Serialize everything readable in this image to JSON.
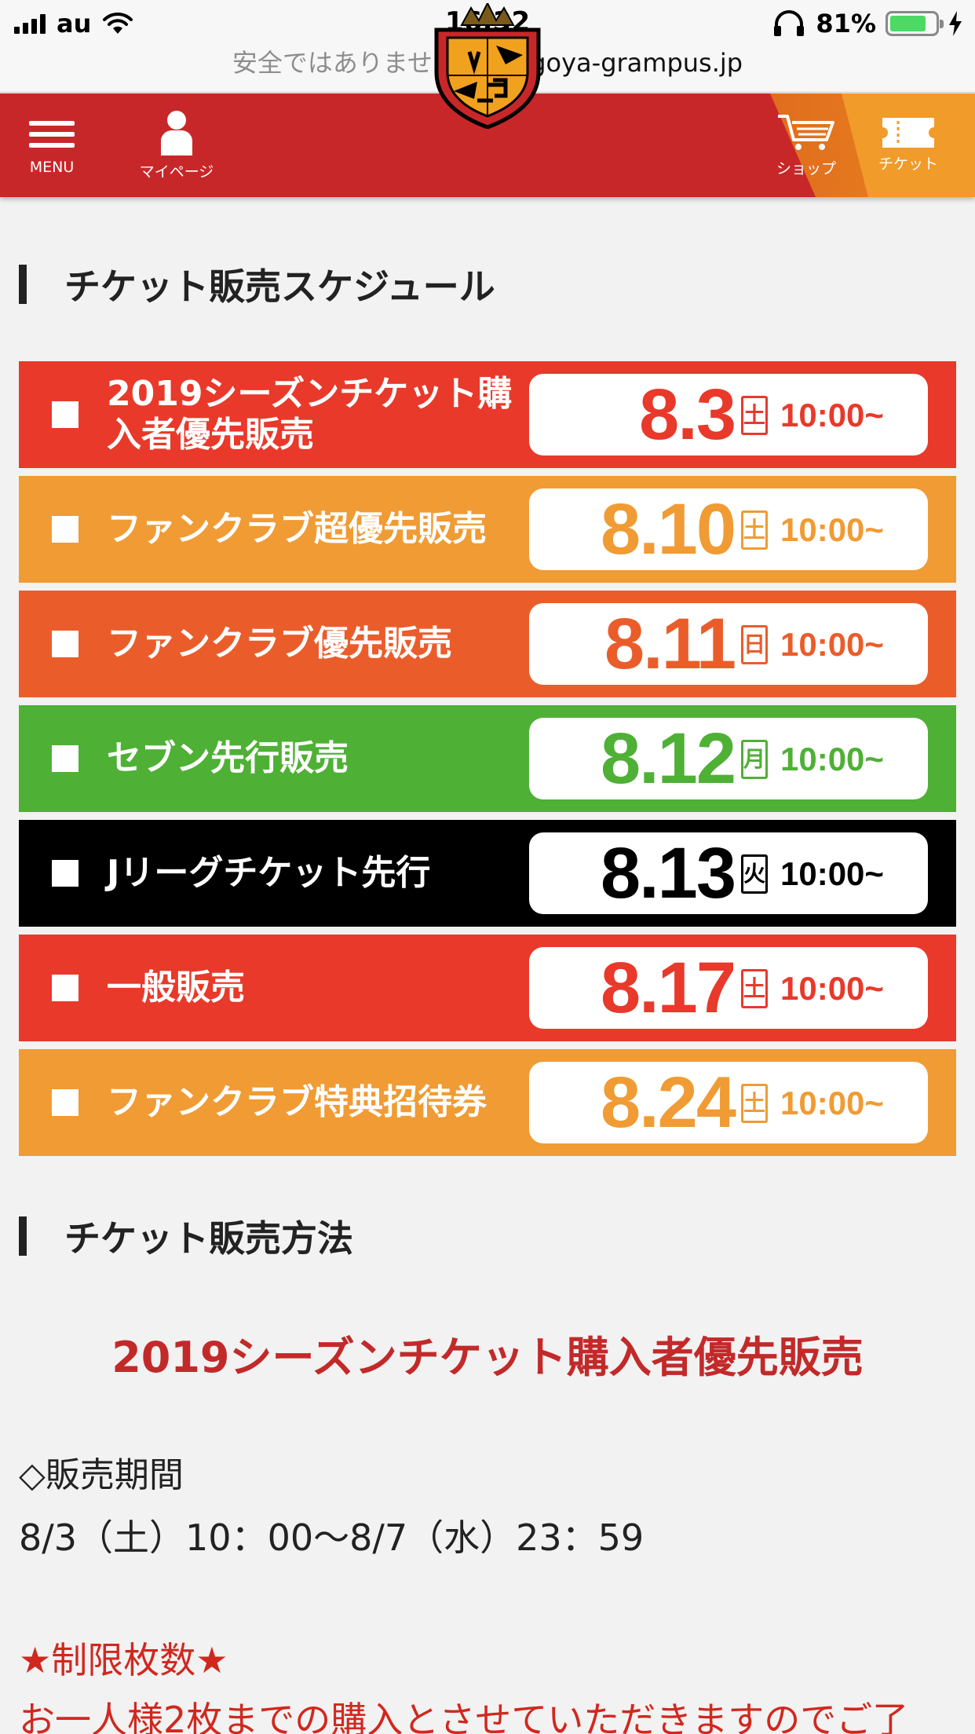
{
  "status_bar": {
    "carrier": "au",
    "time": "16:32",
    "battery_percent": "81%",
    "battery_level": 0.81
  },
  "url_bar": {
    "security_text": "安全ではありません —",
    "domain": "nagoya-grampus.jp"
  },
  "header": {
    "menu_label": "MENU",
    "mypage_label": "マイページ",
    "shop_label": "ショップ",
    "ticket_label": "チケット",
    "colors": {
      "header_red": "#c8272a",
      "shop_orange": "#e27a1f",
      "ticket_orange": "#f09b2a"
    }
  },
  "schedule_section": {
    "heading": "チケット販売スケジュール",
    "items": [
      {
        "label": "2019シーズンチケット購入者優先販売",
        "date": "8.3",
        "dow": "土",
        "time": "10:00~",
        "color": "#e8392b"
      },
      {
        "label": "ファンクラブ超優先販売",
        "date": "8.10",
        "dow": "土",
        "time": "10:00~",
        "color": "#f09b34"
      },
      {
        "label": "ファンクラブ優先販売",
        "date": "8.11",
        "dow": "日",
        "time": "10:00~",
        "color": "#ea5d2b"
      },
      {
        "label": "セブン先行販売",
        "date": "8.12",
        "dow": "月",
        "time": "10:00~",
        "color": "#4fb036"
      },
      {
        "label": "Jリーグチケット先行",
        "date": "8.13",
        "dow": "火",
        "time": "10:00~",
        "color": "#000000"
      },
      {
        "label": "一般販売",
        "date": "8.17",
        "dow": "土",
        "time": "10:00~",
        "color": "#e8392b"
      },
      {
        "label": "ファンクラブ特典招待券",
        "date": "8.24",
        "dow": "土",
        "time": "10:00~",
        "color": "#f09b34"
      }
    ]
  },
  "method_section": {
    "heading": "チケット販売方法",
    "title": "2019シーズンチケット購入者優先販売",
    "period_label": "◇販売期間",
    "period_value": "8/3（土）10：00～8/7（水）23：59",
    "limit_title": "★制限枚数★",
    "limit_text": "お一人様2枚までの購入とさせていただきますのでご了"
  }
}
